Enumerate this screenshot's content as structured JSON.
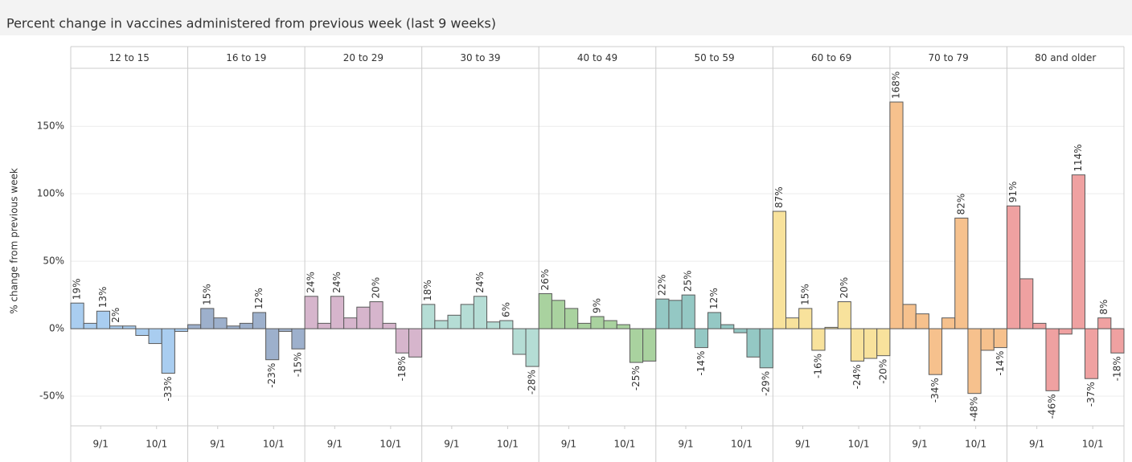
{
  "chart_data": {
    "type": "bar",
    "title": "Percent change in vaccines administered from previous week (last 9 weeks)",
    "y_label": "% change from previous week",
    "ylim": [
      -72,
      193
    ],
    "yticks": [
      {
        "value": -50,
        "label": "-50%"
      },
      {
        "value": 0,
        "label": "0%"
      },
      {
        "value": 50,
        "label": "50%"
      },
      {
        "value": 100,
        "label": "100%"
      },
      {
        "value": 150,
        "label": "150%"
      }
    ],
    "xlim": [
      0,
      9
    ],
    "xticks": [
      {
        "value": 2.3,
        "label": "9/1"
      },
      {
        "value": 6.6,
        "label": "10/1"
      }
    ],
    "grid": true,
    "series": [
      {
        "name": "12 to 15",
        "color": "#a9cdf0",
        "values": [
          19,
          4,
          13,
          2,
          2,
          -5,
          -11,
          -33,
          -2
        ],
        "value_labels": [
          "19%",
          null,
          "13%",
          "2%",
          null,
          null,
          null,
          "-33%",
          null
        ]
      },
      {
        "name": "16 to 19",
        "color": "#9db0cc",
        "values": [
          3,
          15,
          8,
          2,
          4,
          12,
          -23,
          -2,
          -15
        ],
        "value_labels": [
          null,
          "15%",
          null,
          null,
          null,
          "12%",
          "-23%",
          null,
          "-15%"
        ]
      },
      {
        "name": "20 to 29",
        "color": "#d6b5cc",
        "values": [
          24,
          4,
          24,
          8,
          16,
          20,
          4,
          -18,
          -21
        ],
        "value_labels": [
          "24%",
          null,
          "24%",
          null,
          null,
          "20%",
          null,
          "-18%",
          null
        ]
      },
      {
        "name": "30 to 39",
        "color": "#b5ddd5",
        "values": [
          18,
          6,
          10,
          18,
          24,
          5,
          6,
          -19,
          -28
        ],
        "value_labels": [
          "18%",
          null,
          null,
          null,
          "24%",
          null,
          "6%",
          null,
          "-28%"
        ]
      },
      {
        "name": "40 to 49",
        "color": "#a9d29f",
        "values": [
          26,
          21,
          15,
          4,
          9,
          6,
          3,
          -25,
          -24
        ],
        "value_labels": [
          "26%",
          null,
          null,
          null,
          "9%",
          null,
          null,
          "-25%",
          null
        ]
      },
      {
        "name": "50 to 59",
        "color": "#94c8c4",
        "values": [
          22,
          21,
          25,
          -14,
          12,
          3,
          -3,
          -21,
          -29
        ],
        "value_labels": [
          "22%",
          null,
          "25%",
          "-14%",
          "12%",
          null,
          null,
          null,
          "-29%"
        ]
      },
      {
        "name": "60 to 69",
        "color": "#f8e29c",
        "values": [
          87,
          8,
          15,
          -16,
          1,
          20,
          -24,
          -22,
          -20
        ],
        "value_labels": [
          "87%",
          null,
          "15%",
          "-16%",
          null,
          "20%",
          "-24%",
          null,
          "-20%"
        ]
      },
      {
        "name": "70 to 79",
        "color": "#f6c18d",
        "values": [
          168,
          18,
          11,
          -34,
          8,
          82,
          -48,
          -16,
          -14
        ],
        "value_labels": [
          "168%",
          null,
          null,
          "-34%",
          null,
          "82%",
          "-48%",
          null,
          "-14%"
        ]
      },
      {
        "name": "80 and older",
        "color": "#efa1a1",
        "values": [
          91,
          37,
          4,
          -46,
          -4,
          114,
          -37,
          8,
          -18
        ],
        "value_labels": [
          "91%",
          null,
          null,
          "-46%",
          null,
          "114%",
          "-37%",
          "8%",
          "-18%"
        ]
      }
    ]
  }
}
